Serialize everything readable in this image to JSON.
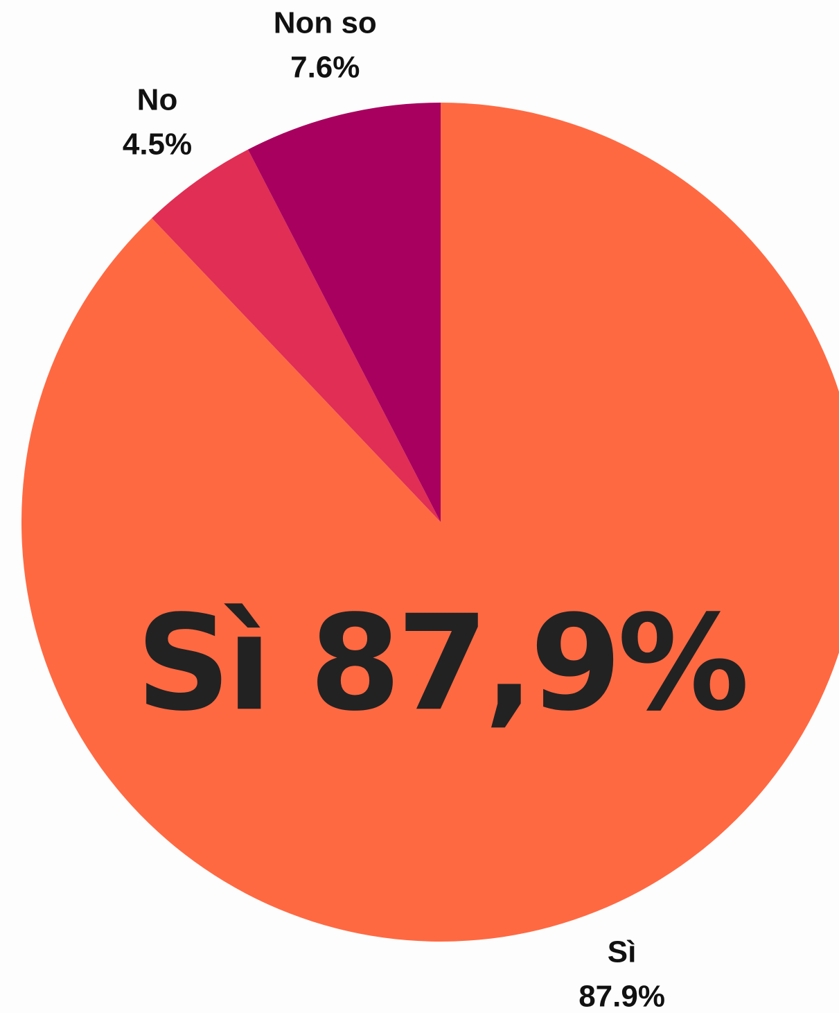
{
  "chart_data": {
    "type": "pie",
    "categories": [
      "Sì",
      "No",
      "Non so"
    ],
    "values": [
      87.9,
      4.5,
      7.6
    ],
    "value_labels": [
      "87.9%",
      "4.5%",
      "7.6%"
    ],
    "colors": [
      "#ff6942",
      "#e02e55",
      "#a8005f"
    ],
    "annotation": "Sì 87,9%"
  }
}
